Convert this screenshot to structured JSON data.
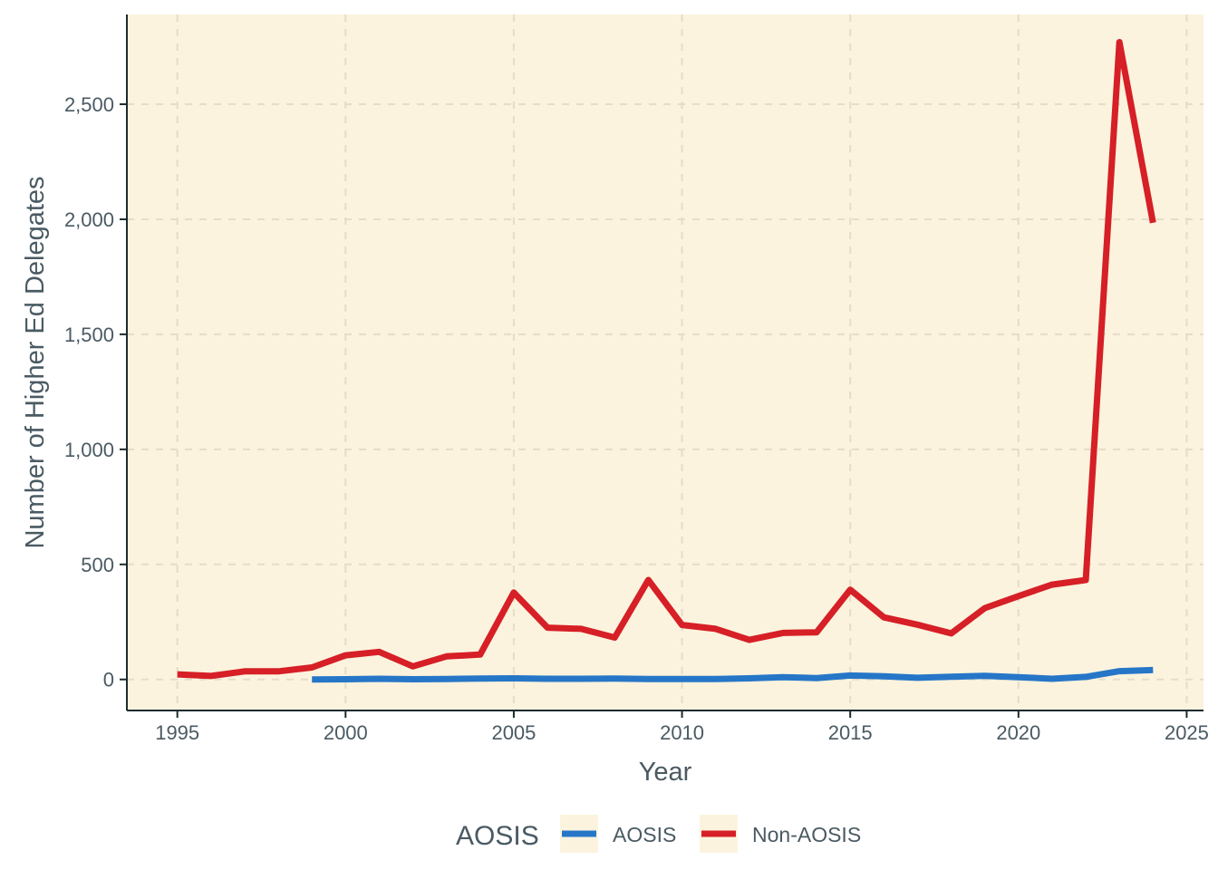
{
  "chart_data": {
    "type": "line",
    "xlabel": "Year",
    "ylabel": "Number of Higher Ed Delegates",
    "xlim": [
      1993.5,
      2025.5
    ],
    "ylim": [
      -135,
      2890
    ],
    "x_ticks": [
      1995,
      2000,
      2005,
      2010,
      2015,
      2020,
      2025
    ],
    "x_tick_labels": [
      "1995",
      "2000",
      "2005",
      "2010",
      "2015",
      "2020",
      "2025"
    ],
    "y_ticks": [
      0,
      500,
      1000,
      1500,
      2000,
      2500
    ],
    "y_tick_labels": [
      "0",
      "500",
      "1,000",
      "1,500",
      "2,000",
      "2,500"
    ],
    "grid": true,
    "grid_style": "dashed",
    "legend": {
      "title": "AOSIS",
      "position": "bottom",
      "entries": [
        "AOSIS",
        "Non-AOSIS"
      ]
    },
    "colors": {
      "panel_background": "#fbf3de",
      "grid": "#e6dcc8",
      "axis_line": "#1c2b2e",
      "text": "#4a5a63",
      "AOSIS": "#2676c8",
      "Non-AOSIS": "#d61f26"
    },
    "series": [
      {
        "name": "AOSIS",
        "color": "#2676c8",
        "x": [
          1999,
          2000,
          2001,
          2002,
          2003,
          2004,
          2005,
          2006,
          2007,
          2008,
          2009,
          2010,
          2011,
          2012,
          2013,
          2014,
          2015,
          2016,
          2017,
          2018,
          2019,
          2020,
          2021,
          2022,
          2023,
          2024
        ],
        "y": [
          0,
          1,
          3,
          1,
          2,
          4,
          5,
          3,
          3,
          4,
          2,
          2,
          2,
          5,
          10,
          6,
          17,
          14,
          7,
          12,
          16,
          10,
          3,
          11,
          36,
          41
        ]
      },
      {
        "name": "Non-AOSIS",
        "color": "#d61f26",
        "x": [
          1995,
          1996,
          1997,
          1998,
          1999,
          2000,
          2001,
          2002,
          2003,
          2004,
          2005,
          2006,
          2007,
          2008,
          2009,
          2010,
          2011,
          2012,
          2013,
          2014,
          2015,
          2016,
          2017,
          2018,
          2019,
          2020,
          2021,
          2022,
          2023,
          2024
        ],
        "y": [
          22,
          15,
          35,
          35,
          52,
          105,
          120,
          57,
          100,
          108,
          378,
          225,
          220,
          182,
          432,
          237,
          220,
          172,
          202,
          205,
          390,
          270,
          238,
          200,
          310,
          362,
          412,
          432,
          2770,
          1985
        ]
      }
    ]
  }
}
